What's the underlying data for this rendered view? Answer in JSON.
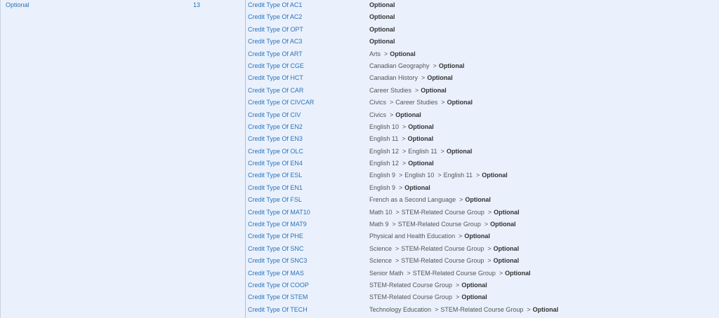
{
  "group": {
    "name": "Optional",
    "count": "13"
  },
  "separator": ">",
  "final_label": "Optional",
  "rows": [
    {
      "label": "Credit Type Of AC1",
      "path": []
    },
    {
      "label": "Credit Type Of AC2",
      "path": []
    },
    {
      "label": "Credit Type Of OPT",
      "path": []
    },
    {
      "label": "Credit Type Of AC3",
      "path": []
    },
    {
      "label": "Credit Type Of ART",
      "path": [
        "Arts"
      ]
    },
    {
      "label": "Credit Type Of CGE",
      "path": [
        "Canadian Geography"
      ]
    },
    {
      "label": "Credit Type Of HCT",
      "path": [
        "Canadian History"
      ]
    },
    {
      "label": "Credit Type Of CAR",
      "path": [
        "Career Studies"
      ]
    },
    {
      "label": "Credit Type Of CIVCAR",
      "path": [
        "Civics",
        "Career Studies"
      ]
    },
    {
      "label": "Credit Type Of CIV",
      "path": [
        "Civics"
      ]
    },
    {
      "label": "Credit Type Of EN2",
      "path": [
        "English 10"
      ]
    },
    {
      "label": "Credit Type Of EN3",
      "path": [
        "English 11"
      ]
    },
    {
      "label": "Credit Type Of OLC",
      "path": [
        "English 12",
        "English 11"
      ]
    },
    {
      "label": "Credit Type Of EN4",
      "path": [
        "English 12"
      ]
    },
    {
      "label": "Credit Type Of ESL",
      "path": [
        "English 9",
        "English 10",
        "English 11"
      ]
    },
    {
      "label": "Credit Type Of EN1",
      "path": [
        "English 9"
      ]
    },
    {
      "label": "Credit Type Of FSL",
      "path": [
        "French as a Second Language"
      ]
    },
    {
      "label": "Credit Type Of MAT10",
      "path": [
        "Math 10",
        "STEM-Related Course Group"
      ]
    },
    {
      "label": "Credit Type Of MAT9",
      "path": [
        "Math 9",
        "STEM-Related Course Group"
      ]
    },
    {
      "label": "Credit Type Of PHE",
      "path": [
        "Physical and Health Education"
      ]
    },
    {
      "label": "Credit Type Of SNC",
      "path": [
        "Science",
        "STEM-Related Course Group"
      ]
    },
    {
      "label": "Credit Type Of SNC3",
      "path": [
        "Science",
        "STEM-Related Course Group"
      ]
    },
    {
      "label": "Credit Type Of MAS",
      "path": [
        "Senior Math",
        "STEM-Related Course Group"
      ]
    },
    {
      "label": "Credit Type Of COOP",
      "path": [
        "STEM-Related Course Group"
      ]
    },
    {
      "label": "Credit Type Of STEM",
      "path": [
        "STEM-Related Course Group"
      ]
    },
    {
      "label": "Credit Type Of TECH",
      "path": [
        "Technology Education",
        "STEM-Related Course Group"
      ]
    }
  ]
}
